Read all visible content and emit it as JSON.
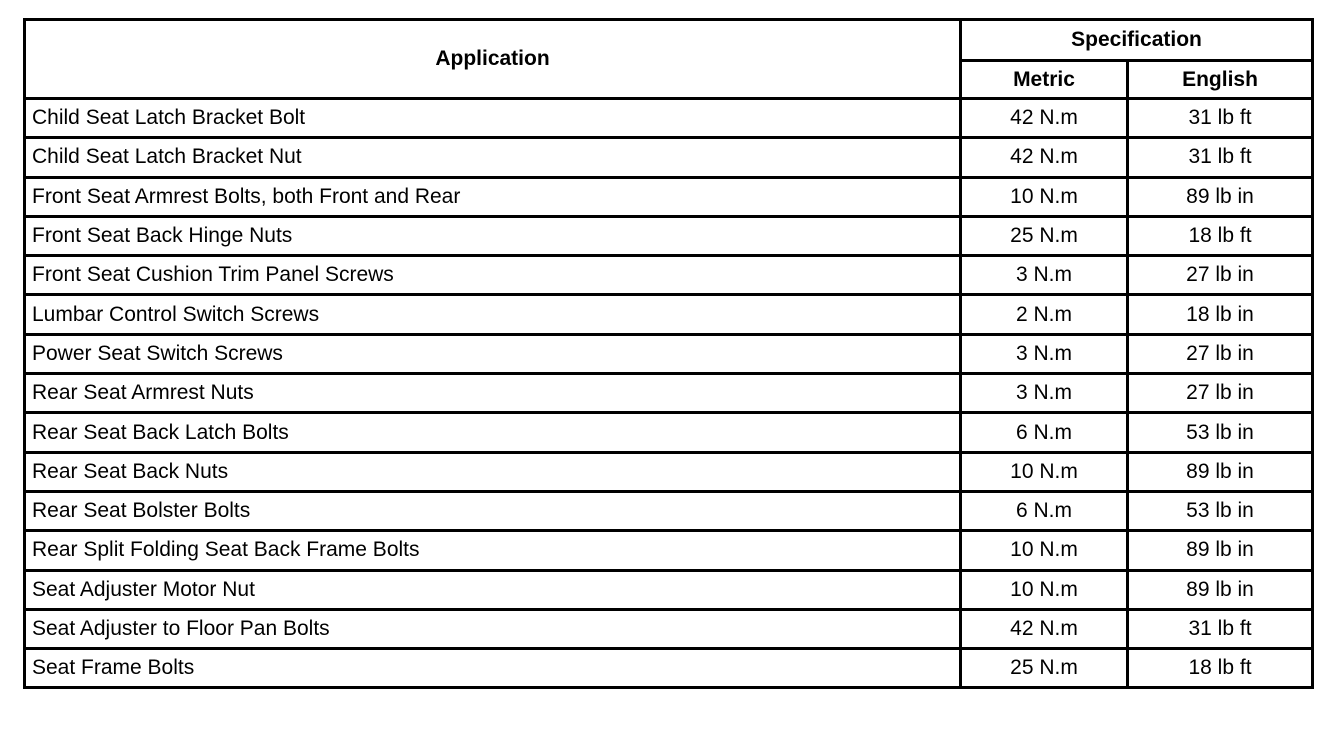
{
  "header": {
    "application": "Application",
    "specification": "Specification",
    "metric": "Metric",
    "english": "English"
  },
  "rows": [
    {
      "application": "Child Seat Latch Bracket Bolt",
      "metric": "42 N.m",
      "english": "31 lb ft"
    },
    {
      "application": "Child Seat Latch Bracket Nut",
      "metric": "42 N.m",
      "english": "31 lb ft"
    },
    {
      "application": "Front Seat Armrest Bolts, both Front and Rear",
      "metric": "10 N.m",
      "english": "89 lb in"
    },
    {
      "application": "Front Seat Back Hinge Nuts",
      "metric": "25 N.m",
      "english": "18 lb ft"
    },
    {
      "application": "Front Seat Cushion Trim Panel Screws",
      "metric": "3 N.m",
      "english": "27 lb in"
    },
    {
      "application": "Lumbar Control Switch Screws",
      "metric": "2 N.m",
      "english": "18 lb in"
    },
    {
      "application": "Power Seat Switch Screws",
      "metric": "3 N.m",
      "english": "27 lb in"
    },
    {
      "application": "Rear Seat Armrest Nuts",
      "metric": "3 N.m",
      "english": "27 lb in"
    },
    {
      "application": "Rear Seat Back Latch Bolts",
      "metric": "6 N.m",
      "english": "53 lb in"
    },
    {
      "application": "Rear Seat Back Nuts",
      "metric": "10 N.m",
      "english": "89 lb in"
    },
    {
      "application": "Rear Seat Bolster Bolts",
      "metric": "6 N.m",
      "english": "53 lb in"
    },
    {
      "application": "Rear Split Folding Seat Back Frame Bolts",
      "metric": "10 N.m",
      "english": "89 lb in"
    },
    {
      "application": "Seat Adjuster Motor Nut",
      "metric": "10 N.m",
      "english": "89 lb in"
    },
    {
      "application": "Seat Adjuster to Floor Pan Bolts",
      "metric": "42 N.m",
      "english": "31 lb ft"
    },
    {
      "application": "Seat Frame Bolts",
      "metric": "25 N.m",
      "english": "18 lb ft"
    }
  ]
}
